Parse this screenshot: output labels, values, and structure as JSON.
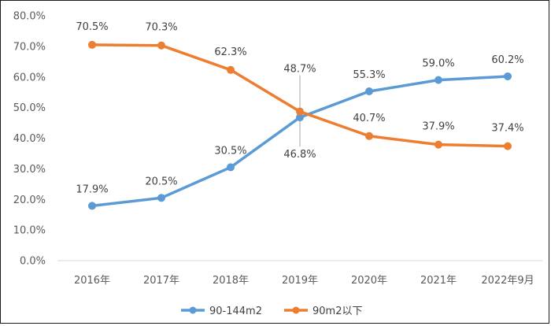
{
  "chart_data": {
    "type": "line",
    "title": "",
    "xlabel": "",
    "ylabel": "",
    "categories": [
      "2016年",
      "2017年",
      "2018年",
      "2019年",
      "2020年",
      "2021年",
      "2022年9月"
    ],
    "y_ticks": [
      "0.0%",
      "10.0%",
      "20.0%",
      "30.0%",
      "40.0%",
      "50.0%",
      "60.0%",
      "70.0%",
      "80.0%"
    ],
    "ylim": [
      0,
      80
    ],
    "grid": false,
    "legend_position": "bottom",
    "series": [
      {
        "name": "90-144m2",
        "color": "#5b9bd5",
        "values": [
          17.9,
          20.5,
          30.5,
          46.8,
          55.3,
          59.0,
          60.2
        ],
        "labels": [
          "17.9%",
          "20.5%",
          "30.5%",
          "46.8%",
          "55.3%",
          "59.0%",
          "60.2%"
        ]
      },
      {
        "name": "90m2以下",
        "color": "#ed7d31",
        "values": [
          70.5,
          70.3,
          62.3,
          48.7,
          40.7,
          37.9,
          37.4
        ],
        "labels": [
          "70.5%",
          "70.3%",
          "62.3%",
          "48.7%",
          "40.7%",
          "37.9%",
          "37.4%"
        ]
      }
    ]
  }
}
